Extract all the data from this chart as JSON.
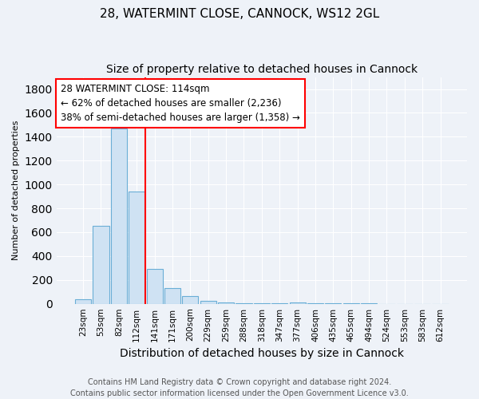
{
  "title1": "28, WATERMINT CLOSE, CANNOCK, WS12 2GL",
  "title2": "Size of property relative to detached houses in Cannock",
  "xlabel": "Distribution of detached houses by size in Cannock",
  "ylabel": "Number of detached properties",
  "bin_labels": [
    "23sqm",
    "53sqm",
    "82sqm",
    "112sqm",
    "141sqm",
    "171sqm",
    "200sqm",
    "229sqm",
    "259sqm",
    "288sqm",
    "318sqm",
    "347sqm",
    "377sqm",
    "406sqm",
    "435sqm",
    "465sqm",
    "494sqm",
    "524sqm",
    "553sqm",
    "583sqm",
    "612sqm"
  ],
  "bar_values": [
    40,
    650,
    1470,
    940,
    290,
    130,
    65,
    25,
    10,
    5,
    5,
    5,
    8,
    2,
    2,
    2,
    2,
    1,
    1,
    1,
    1
  ],
  "bar_color": "#cfe2f3",
  "bar_edge_color": "#6aaed6",
  "red_line_x": 3.5,
  "annotation_line1": "28 WATERMINT CLOSE: 114sqm",
  "annotation_line2": "← 62% of detached houses are smaller (2,236)",
  "annotation_line3": "38% of semi-detached houses are larger (1,358) →",
  "annotation_box_color": "white",
  "annotation_border_color": "red",
  "footer_text": "Contains HM Land Registry data © Crown copyright and database right 2024.\nContains public sector information licensed under the Open Government Licence v3.0.",
  "ylim": [
    0,
    1900
  ],
  "title1_fontsize": 11,
  "title2_fontsize": 10,
  "xlabel_fontsize": 10,
  "ylabel_fontsize": 8,
  "tick_fontsize": 7.5,
  "annotation_fontsize": 8.5,
  "footer_fontsize": 7,
  "background_color": "#eef2f8"
}
